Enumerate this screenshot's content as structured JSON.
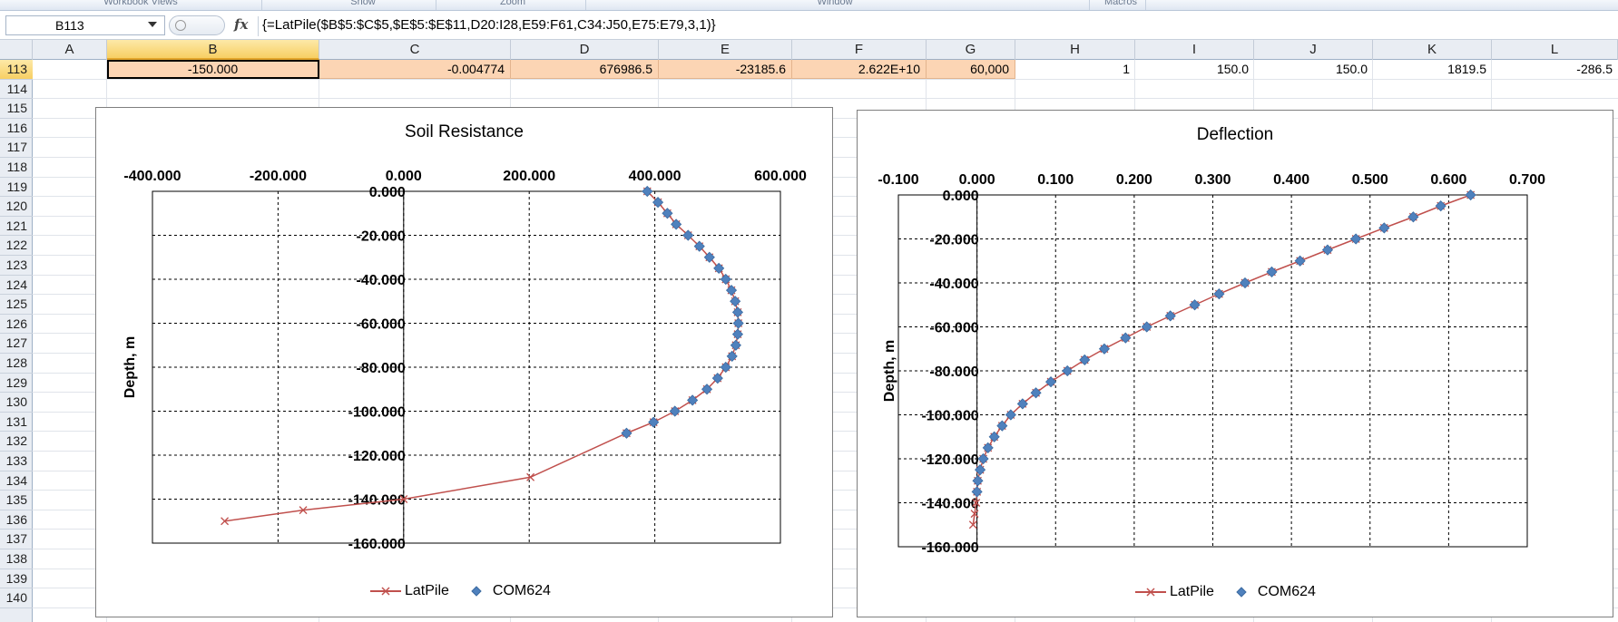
{
  "ribbon": {
    "groups": [
      "Workbook Views",
      "Show",
      "Zoom",
      "Window",
      "Macros"
    ]
  },
  "formula_bar": {
    "name_box": "B113",
    "fx_label": "fx",
    "formula": "{=LatPile($B$5:$C$5,$E$5:$E$11,D20:I28,E59:F61,C34:J50,E75:E79,3,1)}"
  },
  "grid": {
    "columns": [
      "A",
      "B",
      "C",
      "D",
      "E",
      "F",
      "G",
      "H",
      "I",
      "J",
      "K",
      "L"
    ],
    "selected_column": "B",
    "rows": [
      "113",
      "114",
      "115",
      "116",
      "117",
      "118",
      "119",
      "120",
      "121",
      "122",
      "123",
      "124",
      "125",
      "126",
      "127",
      "128",
      "129",
      "130",
      "131",
      "132",
      "133",
      "134",
      "135",
      "136",
      "137",
      "138",
      "139",
      "140"
    ],
    "selected_row": "113",
    "row113": {
      "B": "-150.000",
      "C": "-0.004774",
      "D": "676986.5",
      "E": "-23185.6",
      "F": "2.622E+10",
      "G": "60,000",
      "H": "1",
      "I": "150.0",
      "J": "150.0",
      "K": "1819.5",
      "L": "-286.5"
    }
  },
  "chart_data": [
    {
      "type": "scatter",
      "title": "Soil Resistance",
      "xlabel": "",
      "ylabel": "Depth, m",
      "xlim": [
        -400,
        600
      ],
      "ylim": [
        -160,
        0
      ],
      "x_ticks": [
        "-400.000",
        "-200.000",
        "0.000",
        "200.000",
        "400.000",
        "600.000"
      ],
      "y_ticks": [
        "0.000",
        "-20.000",
        "-40.000",
        "-60.000",
        "-80.000",
        "-100.000",
        "-120.000",
        "-140.000",
        "-160.000"
      ],
      "x_axis_position": "top",
      "grid": true,
      "legend": "bottom",
      "series": [
        {
          "name": "LatPile",
          "marker": "x",
          "color": "#c0504d",
          "line": true,
          "x": [
            388,
            405,
            420,
            434,
            453,
            471,
            487,
            502,
            513,
            522,
            528,
            532,
            533,
            532,
            529,
            523,
            513,
            500,
            483,
            460,
            432,
            398,
            355,
            202,
            0,
            -160,
            -285
          ],
          "y": [
            0,
            -5,
            -10,
            -15,
            -20,
            -25,
            -30,
            -35,
            -40,
            -45,
            -50,
            -55,
            -60,
            -65,
            -70,
            -75,
            -80,
            -85,
            -90,
            -95,
            -100,
            -105,
            -110,
            -130,
            -140,
            -145,
            -150
          ]
        },
        {
          "name": "COM624",
          "marker": "diamond",
          "color": "#4f81bd",
          "line": false,
          "x": [
            388,
            405,
            420,
            434,
            453,
            471,
            487,
            502,
            513,
            522,
            528,
            532,
            533,
            532,
            529,
            523,
            513,
            500,
            483,
            460,
            432,
            398,
            355
          ],
          "y": [
            0,
            -5,
            -10,
            -15,
            -20,
            -25,
            -30,
            -35,
            -40,
            -45,
            -50,
            -55,
            -60,
            -65,
            -70,
            -75,
            -80,
            -85,
            -90,
            -95,
            -100,
            -105,
            -110
          ]
        }
      ]
    },
    {
      "type": "scatter",
      "title": "Deflection",
      "xlabel": "",
      "ylabel": "Depth, m",
      "xlim": [
        -0.1,
        0.7
      ],
      "ylim": [
        -160,
        0
      ],
      "x_ticks": [
        "-0.100",
        "0.000",
        "0.100",
        "0.200",
        "0.300",
        "0.400",
        "0.500",
        "0.600",
        "0.700"
      ],
      "y_ticks": [
        "0.000",
        "-20.000",
        "-40.000",
        "-60.000",
        "-80.000",
        "-100.000",
        "-120.000",
        "-140.000",
        "-160.000"
      ],
      "x_axis_position": "top",
      "grid": true,
      "legend": "bottom",
      "series": [
        {
          "name": "LatPile",
          "marker": "x",
          "color": "#c0504d",
          "line": true,
          "x": [
            0.628,
            0.59,
            0.555,
            0.518,
            0.482,
            0.446,
            0.411,
            0.375,
            0.341,
            0.308,
            0.277,
            0.246,
            0.216,
            0.189,
            0.162,
            0.137,
            0.115,
            0.094,
            0.075,
            0.058,
            0.043,
            0.032,
            0.022,
            0.014,
            0.008,
            0.004,
            0.001,
            0.0,
            -0.001,
            -0.003,
            -0.005
          ],
          "y": [
            0,
            -5,
            -10,
            -15,
            -20,
            -25,
            -30,
            -35,
            -40,
            -45,
            -50,
            -55,
            -60,
            -65,
            -70,
            -75,
            -80,
            -85,
            -90,
            -95,
            -100,
            -105,
            -110,
            -115,
            -120,
            -125,
            -130,
            -135,
            -140,
            -145,
            -150
          ]
        },
        {
          "name": "COM624",
          "marker": "diamond",
          "color": "#4f81bd",
          "line": false,
          "x": [
            0.628,
            0.59,
            0.555,
            0.518,
            0.482,
            0.446,
            0.411,
            0.375,
            0.341,
            0.308,
            0.277,
            0.246,
            0.216,
            0.189,
            0.162,
            0.137,
            0.115,
            0.094,
            0.075,
            0.058,
            0.043,
            0.032,
            0.022,
            0.014,
            0.008,
            0.004,
            0.001,
            0.0
          ],
          "y": [
            0,
            -5,
            -10,
            -15,
            -20,
            -25,
            -30,
            -35,
            -40,
            -45,
            -50,
            -55,
            -60,
            -65,
            -70,
            -75,
            -80,
            -85,
            -90,
            -95,
            -100,
            -105,
            -110,
            -115,
            -120,
            -125,
            -130,
            -135
          ]
        }
      ]
    }
  ]
}
